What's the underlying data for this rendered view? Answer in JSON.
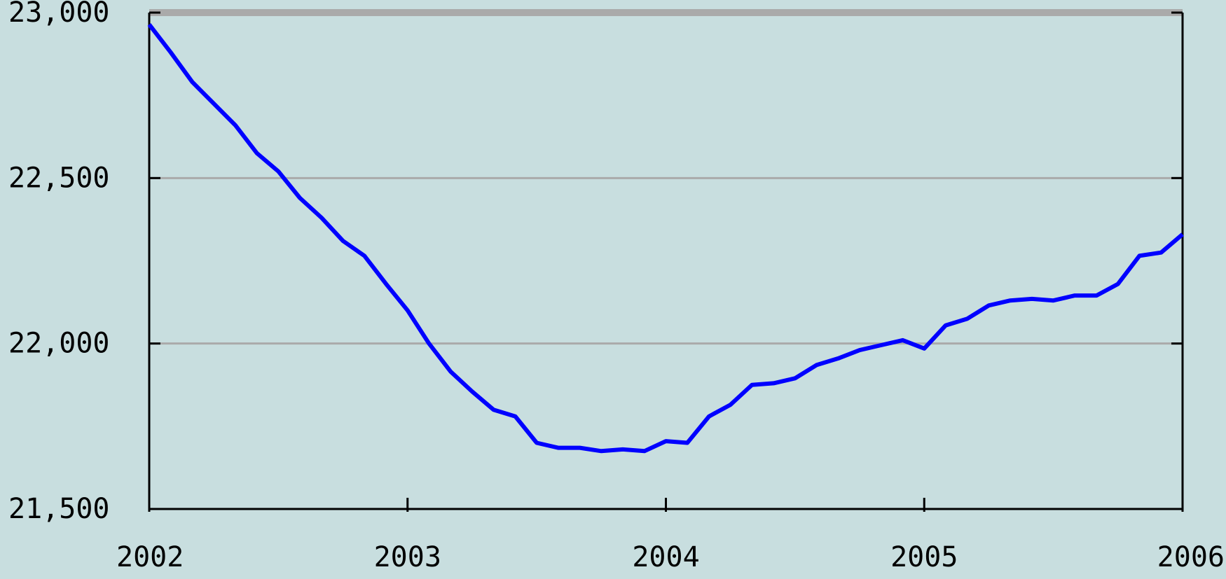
{
  "chart_data": {
    "type": "line",
    "x": [
      2002,
      2002.083,
      2002.167,
      2002.25,
      2002.333,
      2002.417,
      2002.5,
      2002.583,
      2002.667,
      2002.75,
      2002.833,
      2002.917,
      2003,
      2003.083,
      2003.167,
      2003.25,
      2003.333,
      2003.417,
      2003.5,
      2003.583,
      2003.667,
      2003.75,
      2003.833,
      2003.917,
      2004,
      2004.083,
      2004.167,
      2004.25,
      2004.333,
      2004.417,
      2004.5,
      2004.583,
      2004.667,
      2004.75,
      2004.833,
      2004.917,
      2005,
      2005.083,
      2005.167,
      2005.25,
      2005.333,
      2005.417,
      2005.5,
      2005.583,
      2005.667,
      2005.75,
      2005.833,
      2005.917,
      2006
    ],
    "values": [
      22964,
      22880,
      22790,
      22725,
      22660,
      22575,
      22520,
      22440,
      22380,
      22310,
      22265,
      22180,
      22100,
      22000,
      21915,
      21855,
      21800,
      21780,
      21700,
      21685,
      21685,
      21675,
      21680,
      21675,
      21705,
      21700,
      21780,
      21815,
      21875,
      21880,
      21895,
      21935,
      21955,
      21980,
      21995,
      22010,
      21985,
      22055,
      22075,
      22115,
      22130,
      22135,
      22130,
      22145,
      22145,
      22180,
      22265,
      22275,
      22330
    ],
    "color": "#0000ff",
    "xlim": [
      2002,
      2006
    ],
    "xticks": [
      2002,
      2003,
      2004,
      2005,
      2006
    ],
    "ylim": [
      21500,
      23000
    ],
    "yticks": [
      {
        "value": 21500,
        "label": "21,500"
      },
      {
        "value": 22000,
        "label": "22,000"
      },
      {
        "value": 22500,
        "label": "22,500"
      },
      {
        "value": 23000,
        "label": "23,000"
      }
    ],
    "grid": true
  }
}
